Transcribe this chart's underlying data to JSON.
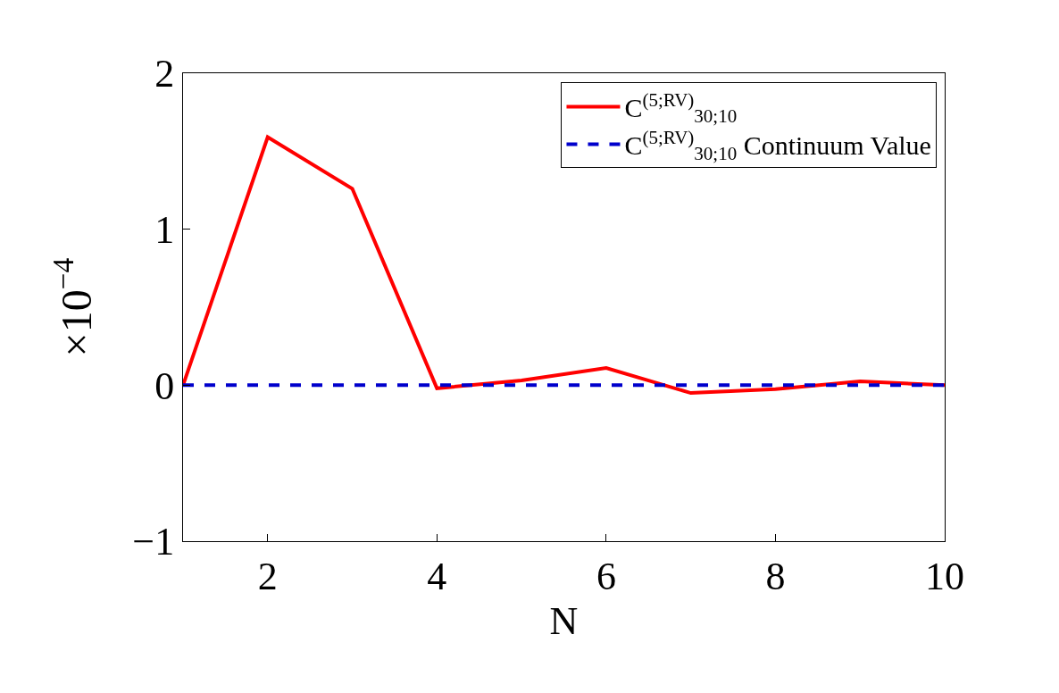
{
  "chart_data": {
    "type": "line",
    "xlabel": "N",
    "ylabel": "×10$^{−4}$",
    "x": [
      1,
      2,
      3,
      4,
      5,
      6,
      7,
      8,
      9,
      10
    ],
    "series": [
      {
        "name": "C$^{(5;RV)}$$_{30;10}$",
        "color": "#ff0000",
        "values": [
          0,
          1.59,
          1.26,
          -0.02,
          0.03,
          0.11,
          -0.05,
          -0.025,
          0.025,
          0
        ],
        "line_style": "solid"
      },
      {
        "name": "C$^{(5;RV)}$$_{30;10}$ Continuum Value",
        "color": "#0000cc",
        "values": [
          0,
          0,
          0,
          0,
          0,
          0,
          0,
          0,
          0,
          0
        ],
        "line_style": "dashed"
      }
    ],
    "xlim": [
      1,
      10
    ],
    "xticks": [
      2,
      4,
      6,
      8,
      10
    ],
    "ylim": [
      -1,
      2
    ],
    "yticks": [
      -1,
      0,
      1,
      2
    ],
    "legend": "top right",
    "marker": "none"
  }
}
